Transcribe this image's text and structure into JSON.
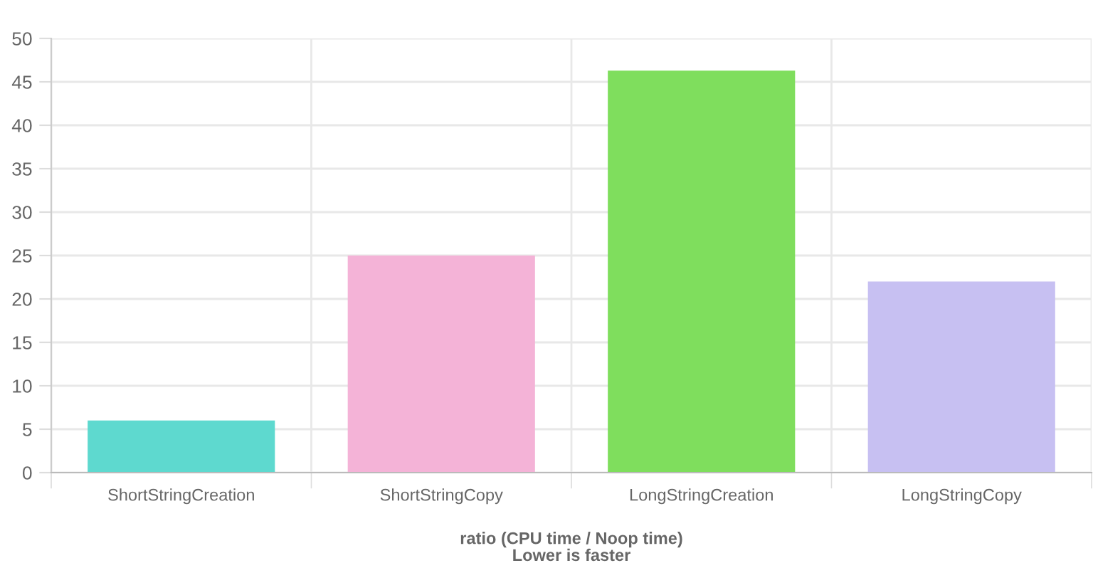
{
  "chart_data": {
    "type": "bar",
    "xlabel": "ratio (CPU time / Noop time)\nLower is faster",
    "categories": [
      "ShortStringCreation",
      "ShortStringCopy",
      "LongStringCreation",
      "LongStringCopy"
    ],
    "values": [
      6.0,
      25.0,
      46.3,
      22.0
    ],
    "colors": [
      "#5ed9cf",
      "#f4b3d7",
      "#7fde5d",
      "#c7c0f2"
    ],
    "ylim": [
      0,
      50
    ],
    "yticks": [
      0,
      5,
      10,
      15,
      20,
      25,
      30,
      35,
      40,
      45,
      50
    ],
    "grid": true,
    "legend": false
  }
}
